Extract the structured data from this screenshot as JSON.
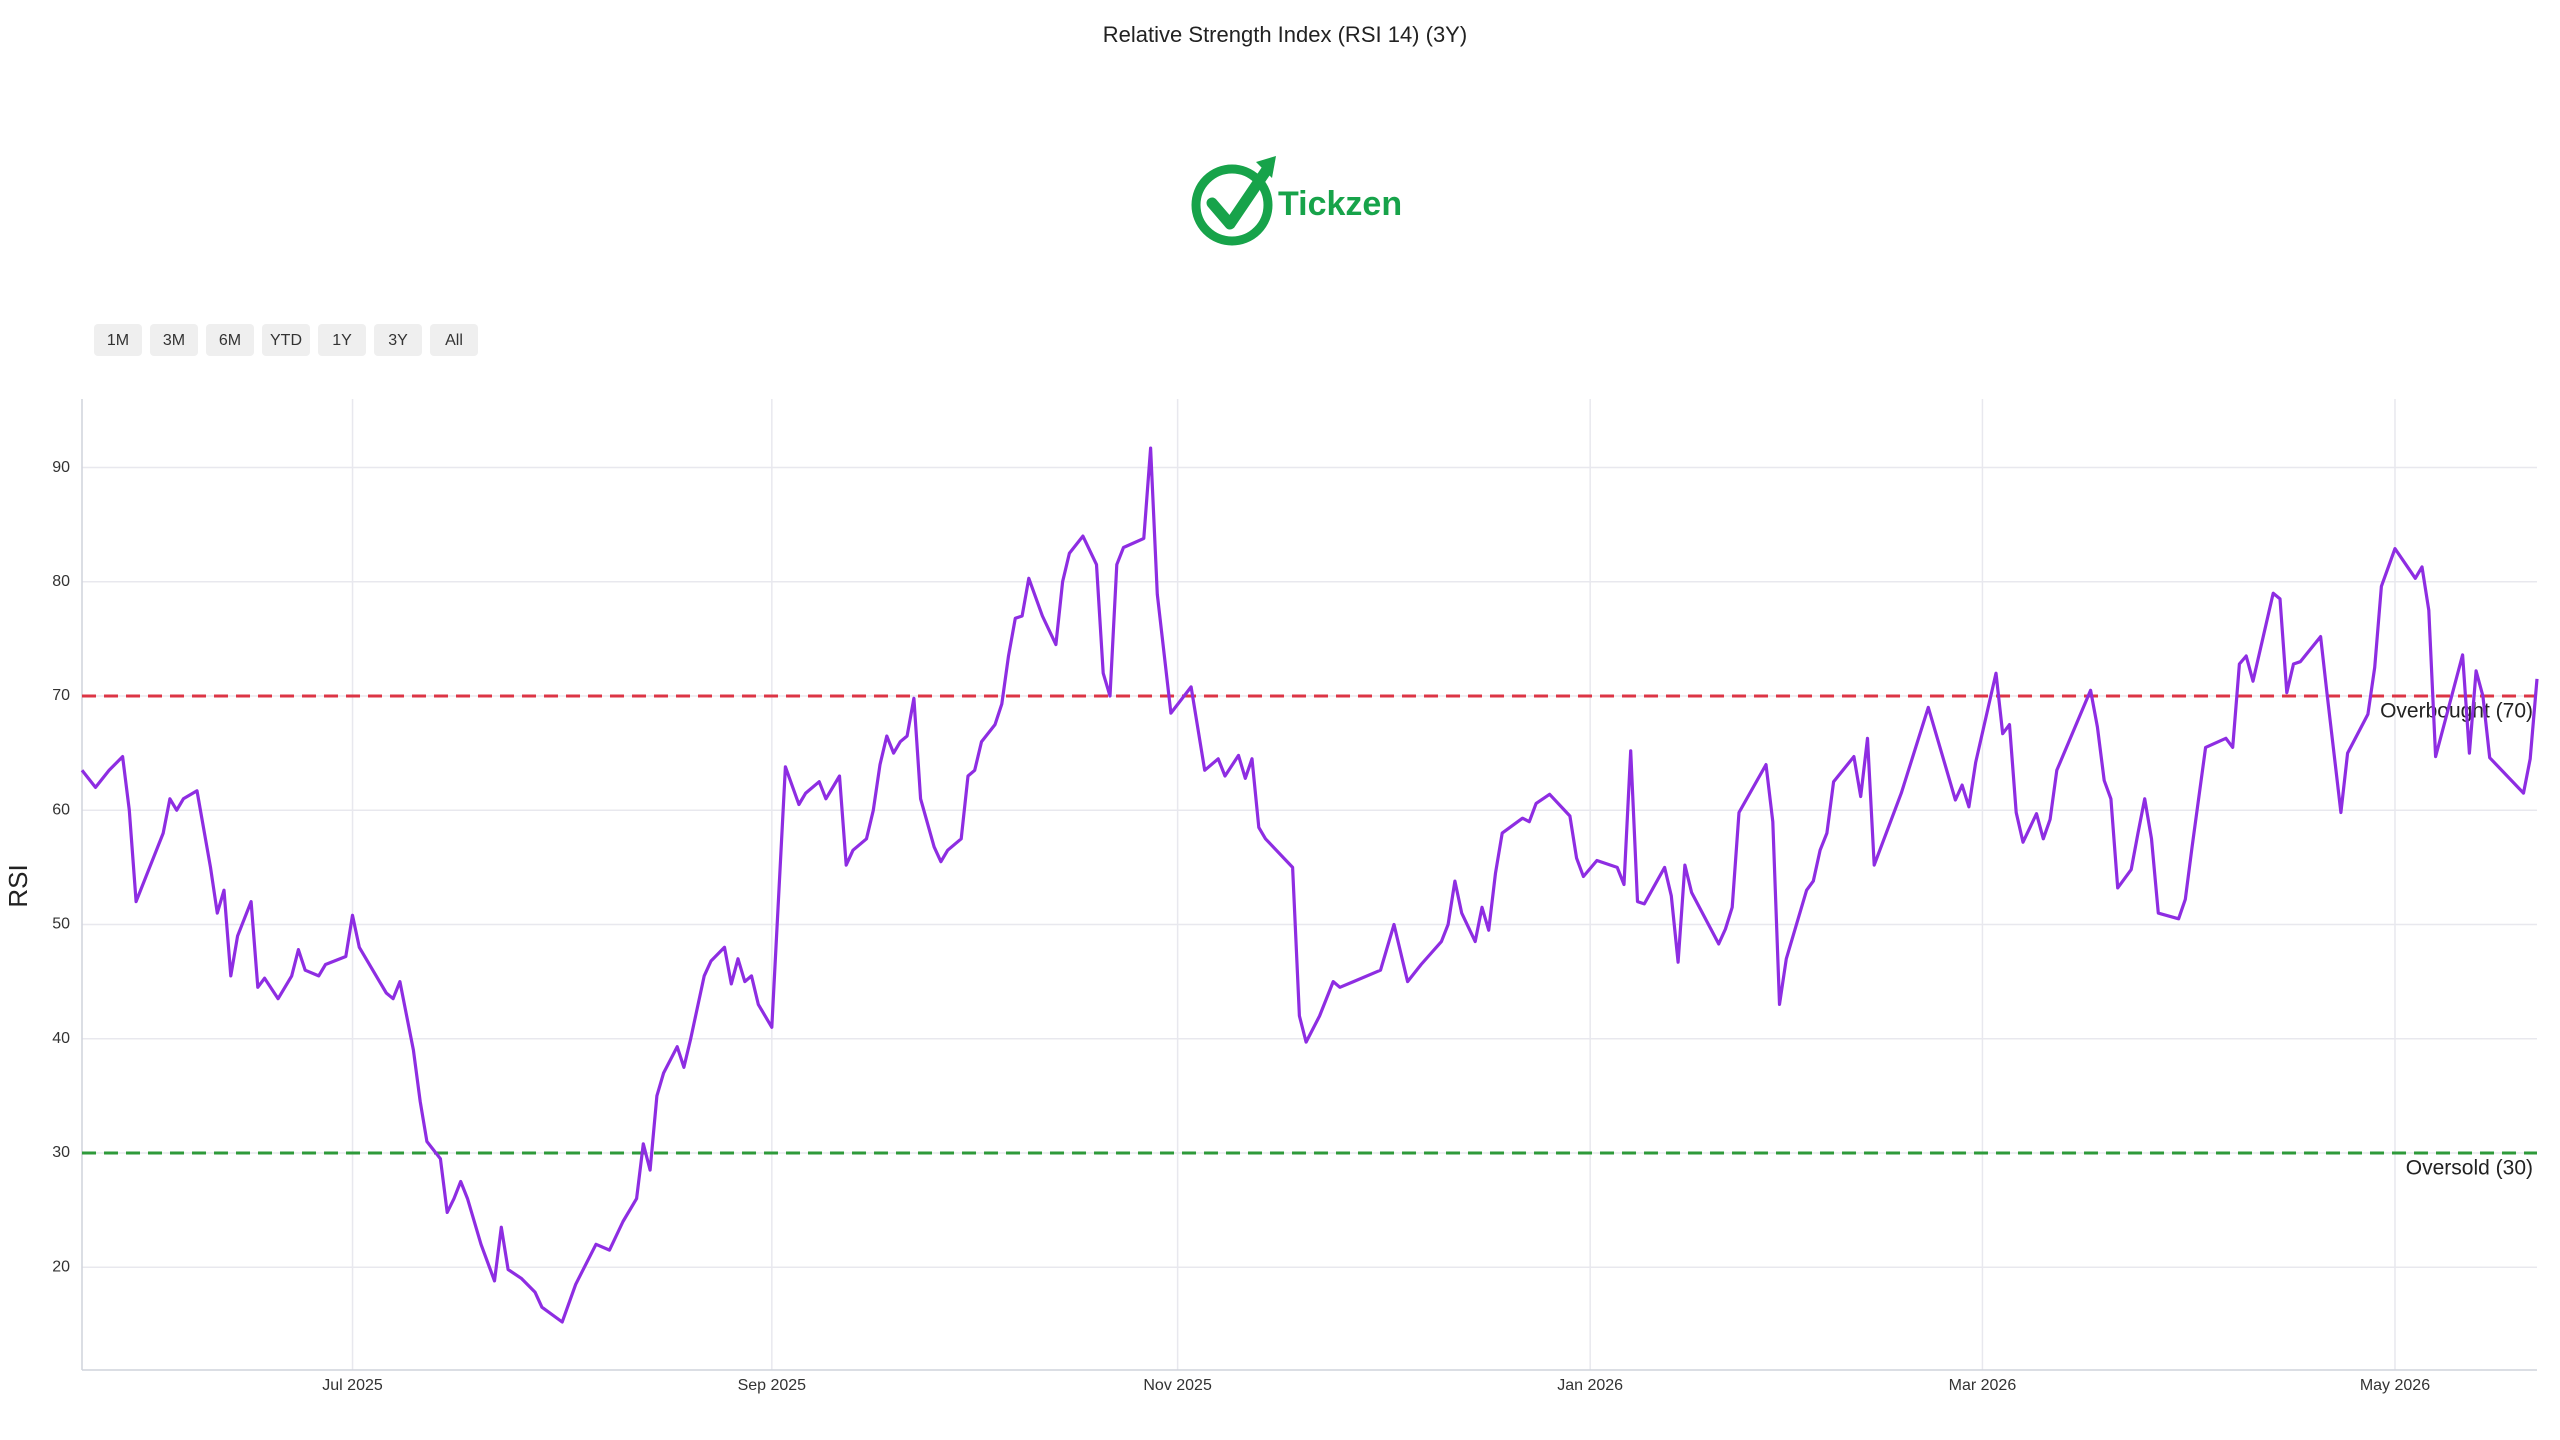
{
  "chart_data": {
    "type": "line",
    "title": "Relative Strength Index (RSI 14) (3Y)",
    "logo_text": "Tickzen",
    "range_buttons": [
      "1M",
      "3M",
      "6M",
      "YTD",
      "1Y",
      "3Y",
      "All"
    ],
    "ylabel": "RSI",
    "color": "#8e2de2",
    "grid": true,
    "xlim": [
      0,
      363
    ],
    "xticks": [
      {
        "value": 40,
        "label": "Jul 2025"
      },
      {
        "value": 102,
        "label": "Sep 2025"
      },
      {
        "value": 162,
        "label": "Nov 2025"
      },
      {
        "value": 223,
        "label": "Jan 2026"
      },
      {
        "value": 281,
        "label": "Mar 2026"
      },
      {
        "value": 342,
        "label": "May 2026"
      }
    ],
    "ylim": [
      11,
      96
    ],
    "yticks": [
      20,
      30,
      40,
      50,
      60,
      70,
      80,
      90
    ],
    "reference_lines": [
      {
        "value": 70,
        "label": "Overbought (70)",
        "color": "#dc3545"
      },
      {
        "value": 30,
        "label": "Oversold (30)",
        "color": "#2e9a3a"
      }
    ],
    "x": [
      0,
      2,
      4,
      6,
      7,
      8,
      10,
      12,
      13,
      14,
      15,
      17,
      19,
      20,
      21,
      22,
      23,
      25,
      26,
      27,
      29,
      31,
      32,
      33,
      35,
      36,
      39,
      40,
      41,
      43,
      45,
      46,
      47,
      49,
      50,
      51,
      53,
      54,
      55,
      56,
      57,
      59,
      61,
      62,
      63,
      65,
      67,
      68,
      71,
      73,
      76,
      78,
      80,
      82,
      83,
      84,
      85,
      86,
      88,
      89,
      90,
      92,
      93,
      95,
      96,
      97,
      98,
      99,
      100,
      102,
      104,
      106,
      107,
      109,
      110,
      112,
      113,
      114,
      116,
      117,
      118,
      119,
      120,
      121,
      122,
      123,
      124,
      126,
      127,
      128,
      130,
      131,
      132,
      133,
      135,
      136,
      137,
      138,
      139,
      140,
      142,
      144,
      145,
      146,
      148,
      150,
      151,
      152,
      153,
      154,
      157,
      158,
      159,
      161,
      164,
      166,
      168,
      169,
      171,
      172,
      173,
      174,
      175,
      179,
      180,
      181,
      183,
      185,
      186,
      188,
      192,
      194,
      196,
      198,
      201,
      202,
      203,
      204,
      206,
      207,
      208,
      209,
      210,
      213,
      214,
      215,
      217,
      220,
      221,
      222,
      224,
      227,
      228,
      229,
      230,
      231,
      234,
      235,
      236,
      237,
      238,
      242,
      243,
      244,
      245,
      249,
      250,
      251,
      252,
      255,
      256,
      257,
      258,
      259,
      262,
      263,
      264,
      265,
      269,
      273,
      277,
      278,
      279,
      280,
      283,
      284,
      285,
      286,
      287,
      289,
      290,
      291,
      292,
      297,
      298,
      299,
      300,
      301,
      303,
      304,
      305,
      306,
      307,
      310,
      311,
      312,
      314,
      317,
      318,
      319,
      320,
      321,
      324,
      325,
      326,
      327,
      328,
      331,
      332,
      334,
      335,
      338,
      339,
      340,
      342,
      345,
      346,
      347,
      348,
      352,
      353,
      354,
      355,
      356,
      361,
      362,
      363
    ],
    "values": [
      63.5,
      62,
      63.5,
      64.7,
      60,
      52,
      55,
      58,
      61,
      60,
      61,
      61.7,
      55,
      51,
      53,
      45.5,
      49,
      52,
      44.5,
      45.3,
      43.5,
      45.5,
      47.8,
      46,
      45.5,
      46.5,
      47.2,
      50.8,
      48,
      46,
      44,
      43.5,
      45,
      39,
      34.5,
      31,
      29.5,
      24.8,
      26,
      27.5,
      26,
      22,
      18.8,
      23.5,
      19.8,
      19,
      17.8,
      16.5,
      15.2,
      18.5,
      22,
      21.5,
      24,
      26,
      30.8,
      28.5,
      35,
      37,
      39.3,
      37.5,
      40,
      45.5,
      46.8,
      48,
      44.8,
      47,
      45,
      45.5,
      43,
      41,
      63.8,
      60.5,
      61.5,
      62.5,
      61,
      63,
      55.2,
      56.5,
      57.5,
      60,
      64,
      66.5,
      65,
      66,
      66.5,
      69.8,
      61,
      56.8,
      55.5,
      56.5,
      57.5,
      63,
      63.5,
      66,
      67.5,
      69.3,
      73.5,
      76.8,
      77,
      80.3,
      77,
      74.5,
      80,
      82.5,
      84,
      81.5,
      72,
      70,
      81.5,
      83,
      83.8,
      91.7,
      78.9,
      68.5,
      70.8,
      63.5,
      64.5,
      63,
      64.8,
      62.8,
      64.5,
      58.5,
      57.5,
      55,
      42,
      39.7,
      42,
      45,
      44.5,
      45,
      46,
      50,
      45,
      46.5,
      48.5,
      50,
      53.8,
      51,
      48.5,
      51.5,
      49.5,
      54.5,
      58,
      59.3,
      59,
      60.6,
      61.4,
      59.5,
      55.8,
      54.2,
      55.6,
      55,
      53.5,
      65.2,
      52,
      51.8,
      55,
      52.5,
      46.7,
      55.2,
      52.8,
      48.3,
      49.6,
      51.5,
      59.8,
      64,
      59,
      43,
      47,
      53,
      53.8,
      56.5,
      58,
      62.5,
      64.7,
      61.2,
      66.3,
      55.2,
      61.5,
      69,
      60.9,
      62.2,
      60.3,
      64.2,
      72,
      66.7,
      67.5,
      59.8,
      57.2,
      59.7,
      57.5,
      59.2,
      63.5,
      70.5,
      67.3,
      62.6,
      61,
      53.2,
      54.8,
      58,
      61,
      57.5,
      51,
      50.5,
      52.2,
      56.8,
      65.5,
      66.3,
      65.5,
      72.8,
      73.5,
      71.3,
      79,
      78.5,
      70.3,
      72.8,
      73,
      75.2,
      70,
      59.8,
      65,
      68.4,
      72.5,
      79.6,
      82.9,
      80.3,
      81.3,
      77.5,
      64.7,
      73.6,
      65,
      72.2,
      70,
      64.6,
      61.5,
      64.5,
      71.5
    ]
  }
}
